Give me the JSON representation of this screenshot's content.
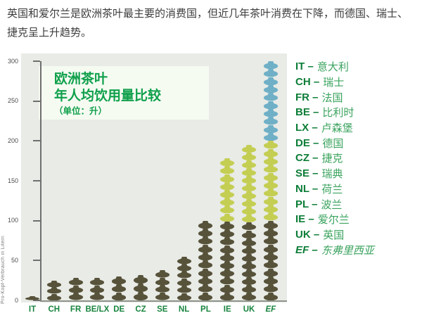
{
  "intro": {
    "text": "英国和爱尔兰是欧洲茶叶最主要的消费国，但近几年茶叶消费在下降，而德国、瑞士、捷克呈上升趋势。"
  },
  "chart": {
    "title_line1": "欧洲茶叶",
    "title_line2": "年人均饮用量比较",
    "title_line3": "（单位：升）"
  },
  "chart_data": {
    "type": "pictogram-bar",
    "title": "欧洲茶叶 年人均饮用量比较（单位：升）",
    "ylabel": "Pro-Kopf-Verbrauch in Litern",
    "xlabel": "",
    "ylim": [
      0,
      300
    ],
    "yticks": [
      0,
      50,
      100,
      150,
      200,
      250,
      300
    ],
    "grid": false,
    "icon": "teapot",
    "liters_per_icon": 10,
    "categories": [
      "IT",
      "CH",
      "FR",
      "BE/LX",
      "DE",
      "CZ",
      "SE",
      "NL",
      "PL",
      "IE",
      "UK",
      "EF"
    ],
    "values": [
      5,
      25,
      28,
      28,
      30,
      32,
      38,
      55,
      100,
      178,
      195,
      300
    ],
    "italic_categories": [
      "EF"
    ],
    "colors": {
      "range_0_100": "#57523a",
      "range_100_200": "#c4ce52",
      "range_200_300": "#6fb0c7"
    }
  },
  "legend": {
    "separator": "–",
    "items": [
      {
        "code": "IT",
        "name": "意大利",
        "emphasis": false
      },
      {
        "code": "CH",
        "name": "瑞士",
        "emphasis": false
      },
      {
        "code": "FR",
        "name": "法国",
        "emphasis": false
      },
      {
        "code": "BE",
        "name": "比利时",
        "emphasis": false
      },
      {
        "code": "LX",
        "name": "卢森堡",
        "emphasis": false
      },
      {
        "code": "DE",
        "name": "德国",
        "emphasis": false
      },
      {
        "code": "CZ",
        "name": "捷克",
        "emphasis": false
      },
      {
        "code": "SE",
        "name": "瑞典",
        "emphasis": false
      },
      {
        "code": "NL",
        "name": "荷兰",
        "emphasis": false
      },
      {
        "code": "PL",
        "name": "波兰",
        "emphasis": false
      },
      {
        "code": "IE",
        "name": "爱尔兰",
        "emphasis": false
      },
      {
        "code": "UK",
        "name": "英国",
        "emphasis": false
      },
      {
        "code": "EF",
        "name": "东弗里西亚",
        "emphasis": true
      }
    ]
  },
  "palette": {
    "panel_bg": "#e8ebe6",
    "title_box_bg": "#f6fbf2",
    "title_green": "#0fa04b",
    "legend_code_green": "#0c7d37",
    "legend_name_green": "#3aa35e",
    "xlabel_green": "#19843f",
    "axis_gray": "#6f6f6f"
  }
}
